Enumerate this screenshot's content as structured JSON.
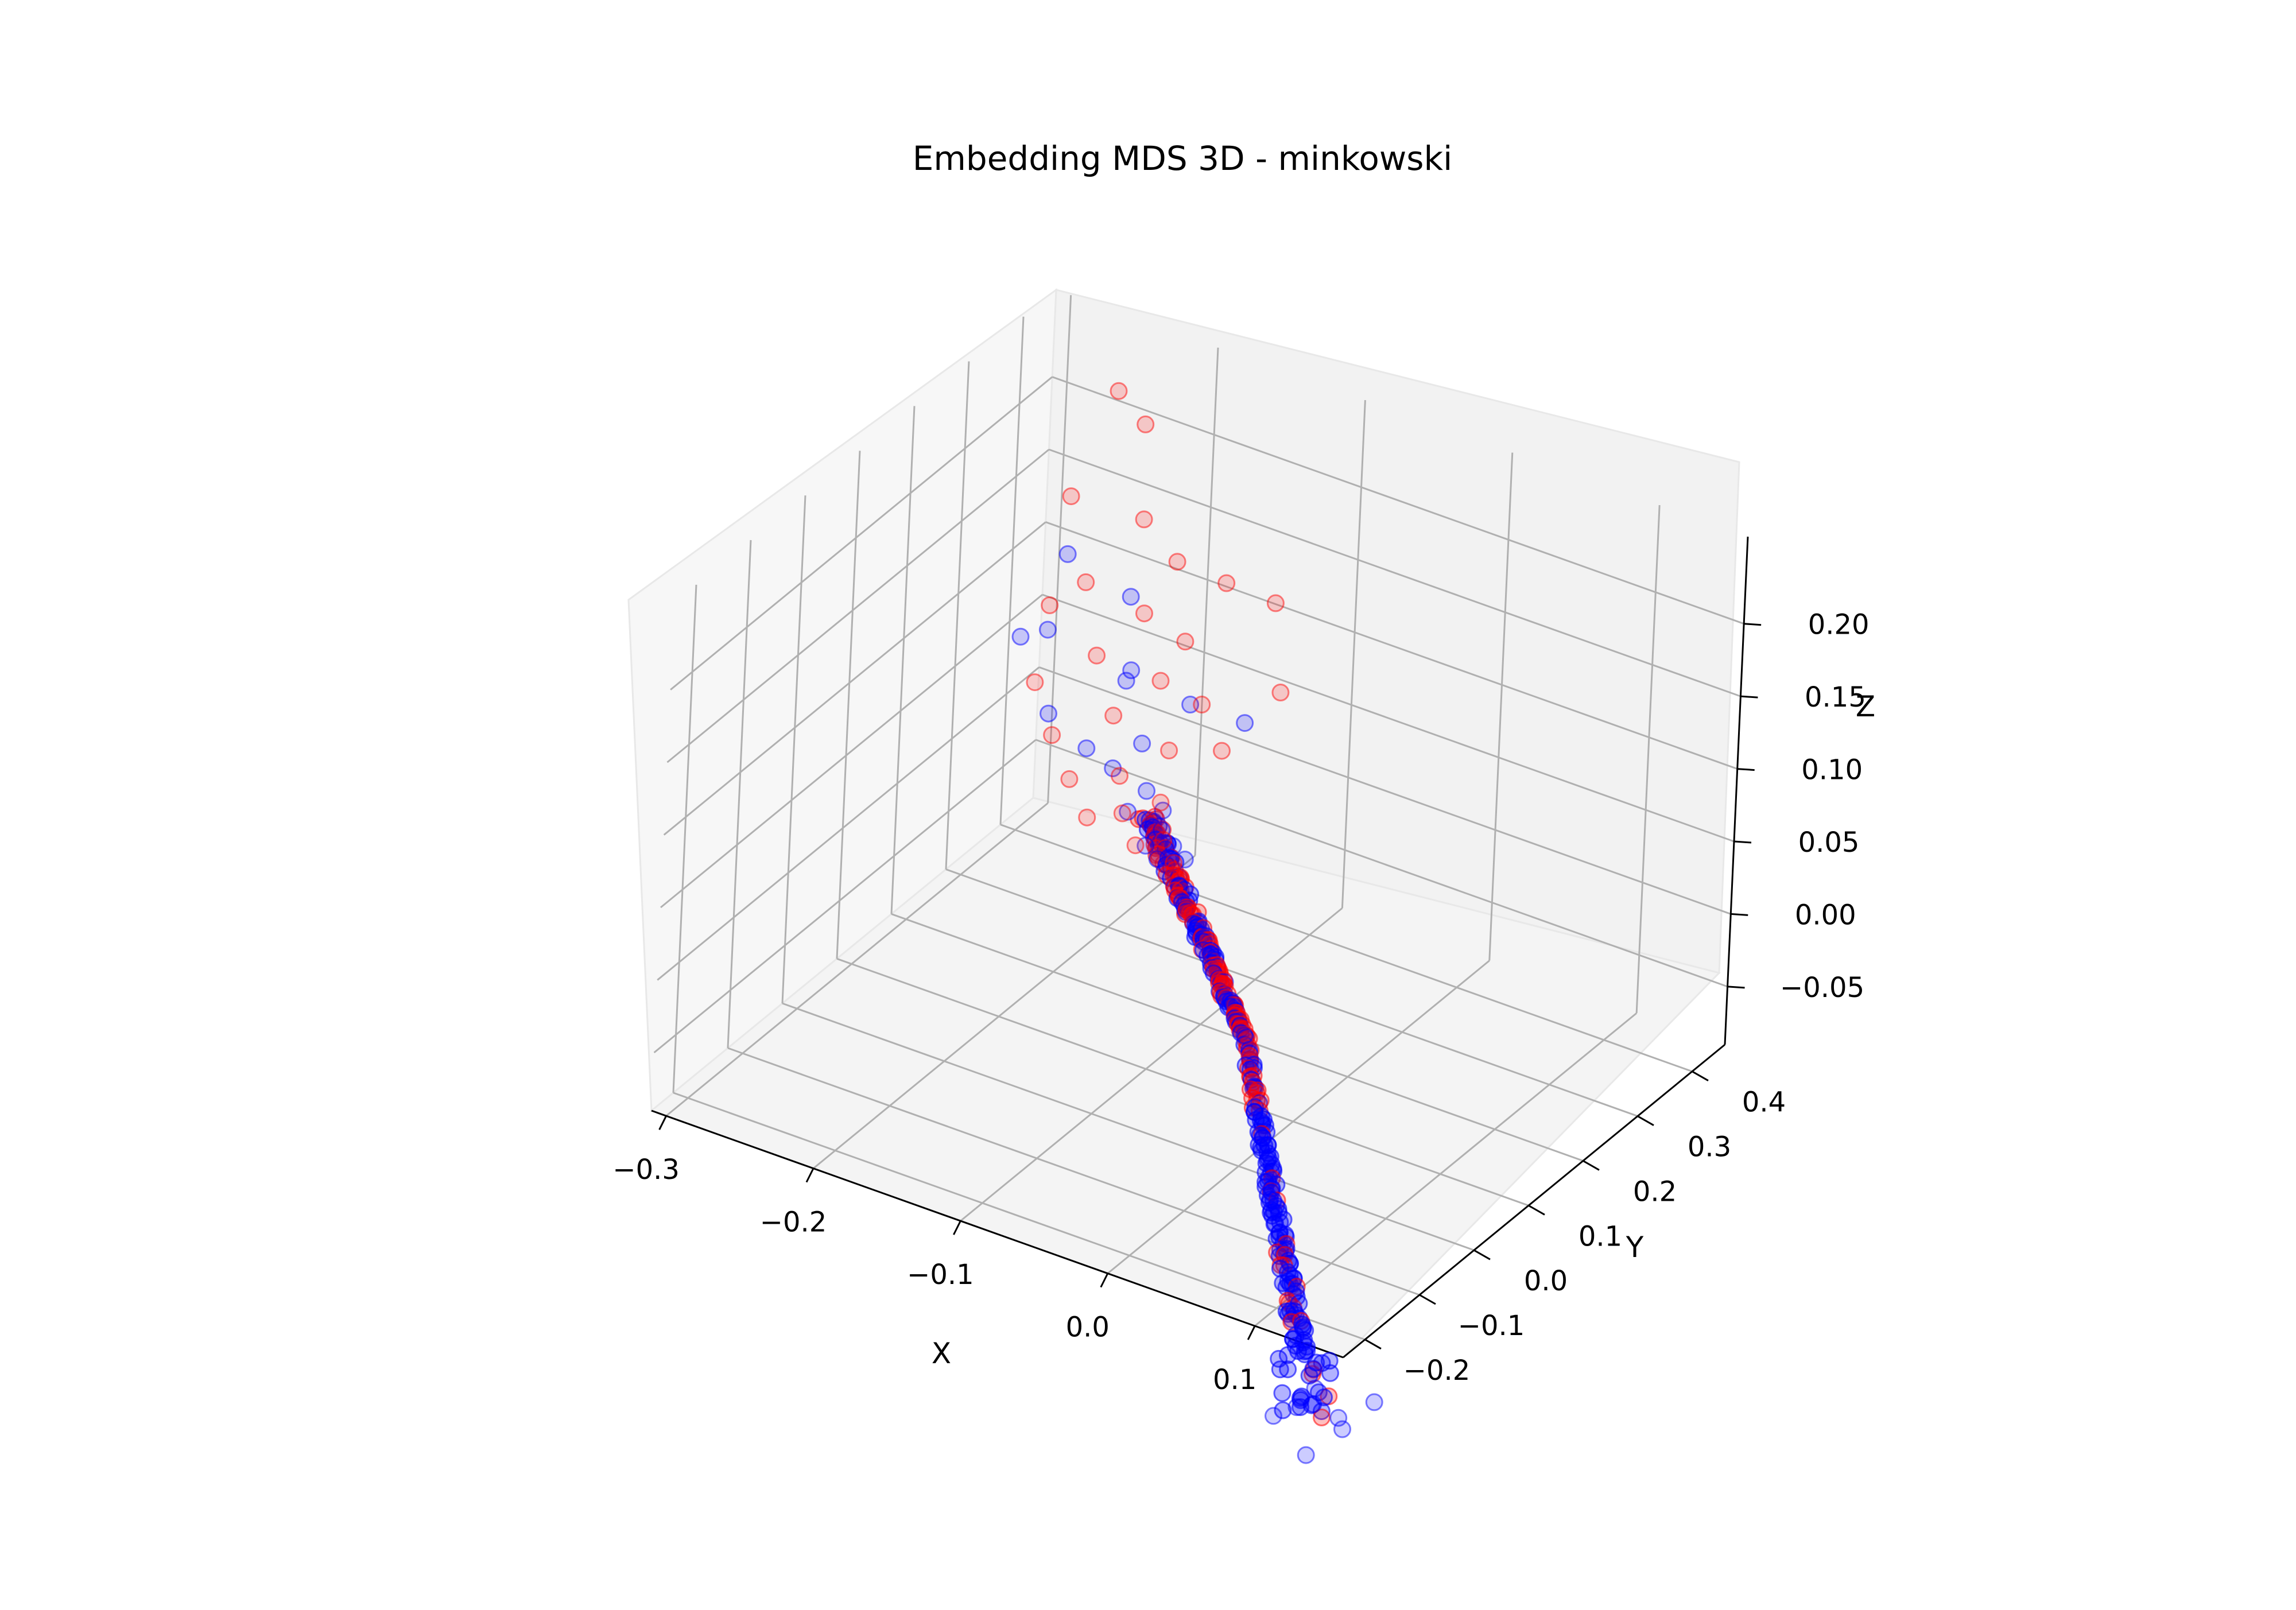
{
  "chart_data": {
    "type": "scatter",
    "title": "Embedding MDS 3D - minkowski",
    "xlabel": "X",
    "ylabel": "Y",
    "zlabel": "Z",
    "x_ticks": [
      "−0.3",
      "−0.2",
      "−0.1",
      "0.0",
      "0.1"
    ],
    "y_ticks": [
      "−0.2",
      "−0.1",
      "0.0",
      "0.1",
      "0.2",
      "0.3",
      "0.4"
    ],
    "z_ticks": [
      "−0.05",
      "0.00",
      "0.05",
      "0.10",
      "0.15",
      "0.20"
    ],
    "xlim": [
      -0.31,
      0.16
    ],
    "ylim": [
      -0.24,
      0.46
    ],
    "zlim": [
      -0.09,
      0.26
    ],
    "grid": true,
    "projection": "3d",
    "series": [
      {
        "color": "#0000ff",
        "points": [
          [
            -0.21,
            0.22,
            0.188
          ],
          [
            -0.17,
            0.23,
            0.17
          ],
          [
            -0.2,
            0.16,
            0.158
          ],
          [
            -0.15,
            0.18,
            0.142
          ],
          [
            -0.225,
            0.18,
            0.138
          ],
          [
            -0.16,
            0.2,
            0.125
          ],
          [
            -0.12,
            0.21,
            0.12
          ],
          [
            -0.09,
            0.23,
            0.112
          ],
          [
            -0.19,
            0.14,
            0.11
          ],
          [
            -0.13,
            0.15,
            0.108
          ],
          [
            -0.16,
            0.13,
            0.1
          ],
          [
            -0.14,
            0.125,
            0.095
          ],
          [
            -0.115,
            0.12,
            0.09
          ],
          [
            -0.1,
            0.11,
            0.085
          ],
          [
            -0.12,
            0.1,
            0.08
          ],
          [
            -0.095,
            0.095,
            0.078
          ],
          [
            -0.085,
            0.09,
            0.072
          ],
          [
            -0.1,
            0.08,
            0.07
          ],
          [
            -0.075,
            0.085,
            0.068
          ],
          [
            -0.09,
            0.075,
            0.066
          ],
          [
            0.0,
            0.0,
            0.0
          ],
          [
            0.1,
            -0.12,
            -0.17
          ],
          [
            0.12,
            -0.13,
            -0.18
          ],
          [
            0.08,
            -0.14,
            -0.19
          ],
          [
            0.13,
            -0.15,
            -0.178
          ],
          [
            0.11,
            -0.16,
            -0.2
          ],
          [
            0.14,
            -0.12,
            -0.165
          ],
          [
            0.09,
            -0.125,
            -0.185
          ]
        ]
      },
      {
        "color": "#ff0000",
        "points": [
          [
            -0.23,
            0.36,
            0.25
          ],
          [
            -0.19,
            0.3,
            0.26
          ],
          [
            -0.16,
            0.22,
            0.23
          ],
          [
            -0.22,
            0.25,
            0.215
          ],
          [
            -0.14,
            0.23,
            0.205
          ],
          [
            -0.11,
            0.24,
            0.198
          ],
          [
            -0.08,
            0.25,
            0.192
          ],
          [
            -0.19,
            0.2,
            0.182
          ],
          [
            -0.15,
            0.2,
            0.175
          ],
          [
            -0.12,
            0.195,
            0.168
          ],
          [
            -0.21,
            0.19,
            0.162
          ],
          [
            -0.06,
            0.21,
            0.15
          ],
          [
            -0.17,
            0.17,
            0.148
          ],
          [
            -0.13,
            0.18,
            0.142
          ],
          [
            -0.1,
            0.175,
            0.138
          ],
          [
            -0.2,
            0.14,
            0.128
          ],
          [
            -0.15,
            0.15,
            0.12
          ],
          [
            -0.11,
            0.145,
            0.112
          ],
          [
            -0.08,
            0.16,
            0.118
          ],
          [
            -0.18,
            0.12,
            0.105
          ],
          [
            -0.13,
            0.11,
            0.098
          ],
          [
            -0.1,
            0.105,
            0.092
          ],
          [
            -0.16,
            0.1,
            0.088
          ],
          [
            -0.12,
            0.09,
            0.082
          ],
          [
            -0.09,
            0.085,
            0.076
          ],
          [
            -0.14,
            0.08,
            0.075
          ],
          [
            -0.105,
            0.075,
            0.07
          ],
          [
            -0.08,
            0.078,
            0.066
          ]
        ]
      }
    ]
  }
}
